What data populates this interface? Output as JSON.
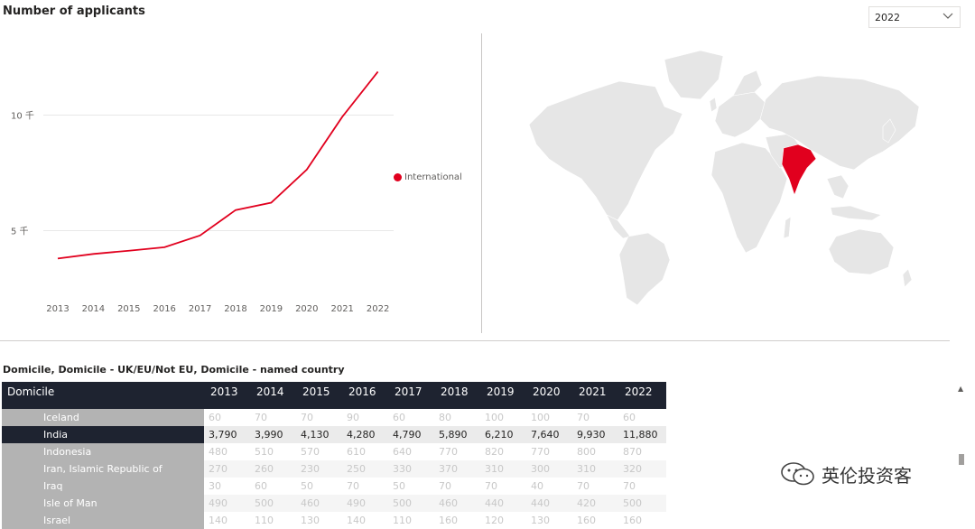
{
  "title": "Number of applicants",
  "year_filter": {
    "selected": "2022"
  },
  "legend": {
    "label": "International",
    "color": "#e1001e"
  },
  "chart_data": {
    "type": "line",
    "x": [
      "2013",
      "2014",
      "2015",
      "2016",
      "2017",
      "2018",
      "2019",
      "2020",
      "2021",
      "2022"
    ],
    "series": [
      {
        "name": "International",
        "values": [
          3790,
          3990,
          4130,
          4280,
          4790,
          5890,
          6210,
          7640,
          9930,
          11880
        ]
      }
    ],
    "ytick_labels": [
      "5 千",
      "10 千"
    ],
    "yticks": [
      5000,
      10000
    ],
    "ylim": [
      1500,
      13500
    ],
    "grid": true
  },
  "map": {
    "highlighted_country": "India",
    "highlight_color": "#e1001e"
  },
  "table": {
    "title": "Domicile, Domicile - UK/EU/Not EU, Domicile - named country",
    "header": {
      "label": "Domicile",
      "years": [
        "2013",
        "2014",
        "2015",
        "2016",
        "2017",
        "2018",
        "2019",
        "2020",
        "2021",
        "2022"
      ]
    },
    "rows": [
      {
        "name": "Iceland",
        "values": [
          "60",
          "70",
          "70",
          "90",
          "60",
          "80",
          "100",
          "100",
          "70",
          "60"
        ]
      },
      {
        "name": "India",
        "values": [
          "3,790",
          "3,990",
          "4,130",
          "4,280",
          "4,790",
          "5,890",
          "6,210",
          "7,640",
          "9,930",
          "11,880"
        ]
      },
      {
        "name": "Indonesia",
        "values": [
          "480",
          "510",
          "570",
          "610",
          "640",
          "770",
          "820",
          "770",
          "800",
          "870"
        ]
      },
      {
        "name": "Iran, Islamic Republic of",
        "values": [
          "270",
          "260",
          "230",
          "250",
          "330",
          "370",
          "310",
          "300",
          "310",
          "320"
        ]
      },
      {
        "name": "Iraq",
        "values": [
          "30",
          "60",
          "50",
          "70",
          "50",
          "70",
          "70",
          "40",
          "70",
          "70"
        ]
      },
      {
        "name": "Isle of Man",
        "values": [
          "490",
          "500",
          "460",
          "490",
          "500",
          "460",
          "440",
          "440",
          "420",
          "500"
        ]
      },
      {
        "name": "Israel",
        "values": [
          "140",
          "110",
          "130",
          "140",
          "110",
          "160",
          "120",
          "130",
          "160",
          "160"
        ]
      }
    ]
  },
  "watermark": {
    "text": "英伦投资客"
  }
}
